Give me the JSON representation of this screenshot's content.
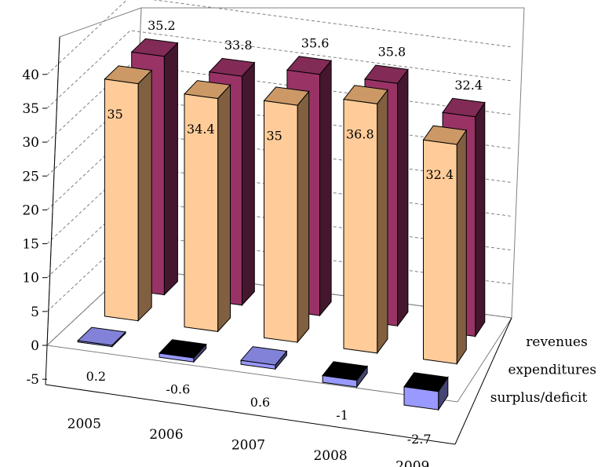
{
  "chart_data": {
    "type": "bar",
    "categories": [
      "2005",
      "2006",
      "2007",
      "2008",
      "2009"
    ],
    "series": [
      {
        "name": "surplus/deficit",
        "values": [
          0.2,
          -0.6,
          0.6,
          -1,
          -2.7
        ],
        "labels": [
          "0.2",
          "-0.6",
          "0.6",
          "-1",
          "-2.7"
        ]
      },
      {
        "name": "expenditures",
        "values": [
          35,
          34.4,
          35,
          36.8,
          32.4
        ],
        "labels": [
          "35",
          "34.4",
          "35",
          "36.8",
          "32.4"
        ]
      },
      {
        "name": "revenues",
        "values": [
          35.2,
          33.8,
          35.6,
          35.8,
          32.4
        ],
        "labels": [
          "35.2",
          "33.8",
          "35.6",
          "35.8",
          "32.4"
        ]
      }
    ],
    "y_ticks": [
      "-5",
      "0",
      "5",
      "10",
      "15",
      "20",
      "25",
      "30",
      "35",
      "40"
    ],
    "ylim": [
      -5,
      40
    ],
    "grid": true,
    "colors": {
      "revenues": "#993366",
      "expenditures": "#ffcc99",
      "surplus/deficit": "#9999ff",
      "dark_face": "#000000"
    }
  }
}
